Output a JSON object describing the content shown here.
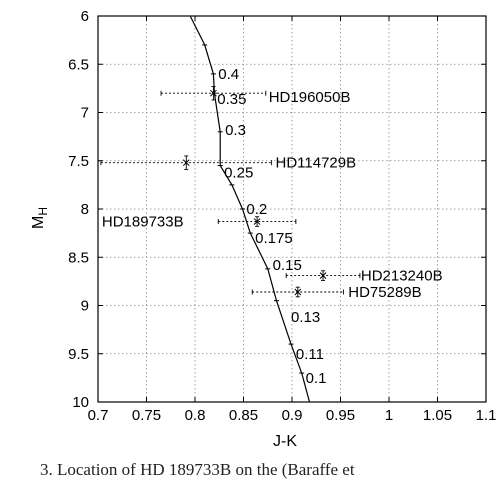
{
  "chart_data": {
    "type": "line",
    "xlabel": "J-K",
    "ylabel": "M",
    "ylabel_sub": "H",
    "xlim": [
      0.7,
      1.1
    ],
    "ylim": [
      10,
      6
    ],
    "y_inverted": true,
    "grid": true,
    "x_ticks": [
      "0.7",
      "0.75",
      "0.8",
      "0.85",
      "0.9",
      "0.95",
      "1",
      "1.05",
      "1.1"
    ],
    "y_ticks": [
      "6",
      "6.5",
      "7",
      "7.5",
      "8",
      "8.5",
      "9",
      "9.5",
      "10"
    ],
    "isochrone": {
      "x": [
        0.795,
        0.81,
        0.819,
        0.82,
        0.826,
        0.826,
        0.838,
        0.849,
        0.857,
        0.875,
        0.884,
        0.899,
        0.91,
        0.918
      ],
      "y": [
        6.0,
        6.3,
        6.6,
        6.8,
        7.2,
        7.55,
        7.75,
        8.0,
        8.25,
        8.62,
        8.95,
        9.4,
        9.7,
        10.0
      ]
    },
    "mass_annotations": [
      {
        "text": "0.4",
        "x": 0.824,
        "y": 6.6
      },
      {
        "text": "0.35",
        "x": 0.823,
        "y": 6.86
      },
      {
        "text": "0.3",
        "x": 0.831,
        "y": 7.18
      },
      {
        "text": "0.25",
        "x": 0.83,
        "y": 7.62
      },
      {
        "text": "0.2",
        "x": 0.853,
        "y": 8.0
      },
      {
        "text": "0.175",
        "x": 0.862,
        "y": 8.3
      },
      {
        "text": "0.15",
        "x": 0.88,
        "y": 8.58
      },
      {
        "text": "0.13",
        "x": 0.899,
        "y": 9.12
      },
      {
        "text": "0.11",
        "x": 0.904,
        "y": 9.5
      },
      {
        "text": "0.1",
        "x": 0.914,
        "y": 9.75
      }
    ],
    "companions": [
      {
        "name": "HD196050B",
        "x": 0.819,
        "y": 6.8,
        "xerr": 0.054,
        "yerr": 0.07,
        "label_x": 0.876,
        "label_y": 6.84
      },
      {
        "name": "HD114729B",
        "x": 0.791,
        "y": 7.52,
        "xerr": 0.088,
        "yerr": 0.07,
        "label_x": 0.883,
        "label_y": 7.52
      },
      {
        "name": "HD189733B",
        "x": 0.864,
        "y": 8.13,
        "xerr": 0.04,
        "yerr": 0.05,
        "label_x": 0.704,
        "label_y": 8.13
      },
      {
        "name": "HD213240B",
        "x": 0.932,
        "y": 8.69,
        "xerr": 0.038,
        "yerr": 0.05,
        "label_x": 0.971,
        "label_y": 8.69
      },
      {
        "name": "HD75289B",
        "x": 0.906,
        "y": 8.86,
        "xerr": 0.047,
        "yerr": 0.05,
        "label_x": 0.958,
        "label_y": 8.86
      }
    ]
  },
  "caption": "3.      Location of HD 189733B on the (Baraffe et"
}
